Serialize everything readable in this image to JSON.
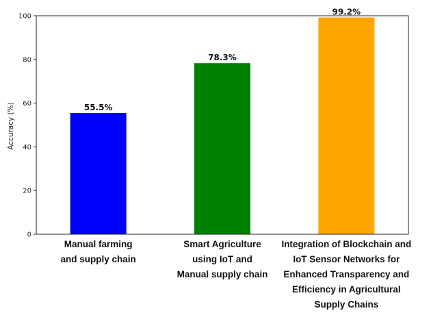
{
  "chart_data": {
    "type": "bar",
    "categories": [
      "Manual farming\nand supply chain",
      "Smart Agriculture\nusing IoT and\nManual supply chain",
      "Integration of Blockchain and\nIoT Sensor Networks for\nEnhanced Transparency and\nEfficiency in Agricultural\nSupply Chains"
    ],
    "values": [
      55.5,
      78.3,
      99.2
    ],
    "data_labels": [
      "55.5%",
      "78.3%",
      "99.2%"
    ],
    "colors": [
      "#0000ff",
      "#008000",
      "#ffa500"
    ],
    "ylabel": "Accuracy (%)",
    "ylim": [
      0,
      100
    ],
    "yticks": [
      "0",
      "20",
      "40",
      "60",
      "80",
      "100"
    ],
    "grid": false,
    "legend": "none"
  }
}
